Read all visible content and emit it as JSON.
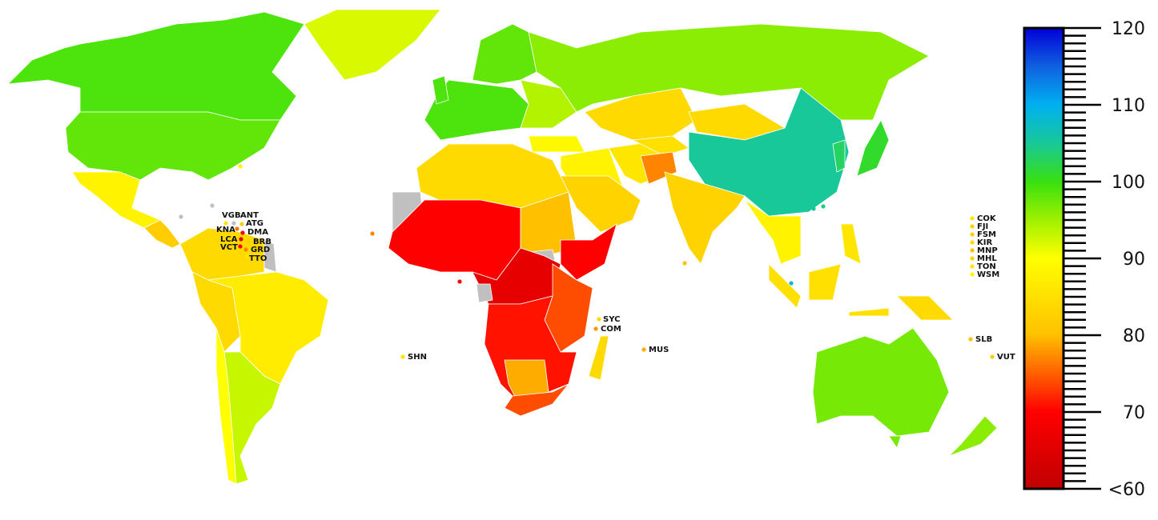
{
  "legend": {
    "min": 60,
    "max": 120,
    "tick_labels": [
      "120",
      "110",
      "100",
      "90",
      "80",
      "70",
      "<60"
    ],
    "tick_values": [
      120,
      110,
      100,
      90,
      80,
      70,
      60
    ],
    "colorscale": [
      [
        60,
        "#c00000"
      ],
      [
        70,
        "#ff0000"
      ],
      [
        75,
        "#ff6000"
      ],
      [
        78,
        "#ff9800"
      ],
      [
        80,
        "#ffc000"
      ],
      [
        85,
        "#ffe000"
      ],
      [
        90,
        "#ffff00"
      ],
      [
        95,
        "#a0f000"
      ],
      [
        100,
        "#38e010"
      ],
      [
        105,
        "#18c898"
      ],
      [
        110,
        "#00b0f0"
      ],
      [
        115,
        "#1060e0"
      ],
      [
        120,
        "#0000d8"
      ]
    ],
    "no_data_color": "#c0c0c0"
  },
  "regions": {
    "canada": 99,
    "usa": 98,
    "greenland": 92,
    "mexico": 88,
    "central_america": 82,
    "south_america_north": 84,
    "peru_bolivia": 84,
    "brazil": 87,
    "argentina": 93,
    "chile": 90,
    "french_guiana": null,
    "europe": 99,
    "uk": 99,
    "scandinavia": 98,
    "eastern_europe": 94,
    "russia": 96,
    "kazakhstan": 84,
    "turkey": 89,
    "middle_east": 88,
    "saudi_arabia": 83,
    "iran": 86,
    "central_asia": 85,
    "afghanistan": 77,
    "mongolia": 84,
    "china": 105,
    "korea": 103,
    "japan": 101,
    "india": 83,
    "southeast_asia": 88,
    "indonesia": 85,
    "philippines": 86,
    "papua_new_guinea": 84,
    "australia": 97,
    "tasmania": 97,
    "new_zealand": 96,
    "north_africa": 84,
    "western_sahara": null,
    "west_africa": 70,
    "sudan": 80,
    "south_sudan": null,
    "horn_of_africa": 70,
    "central_africa": 66,
    "gabon": null,
    "east_africa": 74,
    "southern_central_africa": 71,
    "namibia_botswana": 79,
    "south_africa": 74,
    "madagascar": 84
  },
  "small_states": [
    {
      "code": "VGB",
      "value": 86
    },
    {
      "code": "ANT",
      "value": null
    },
    {
      "code": "ATG",
      "value": 82
    },
    {
      "code": "KNA",
      "value": 76
    },
    {
      "code": "DMA",
      "value": 70
    },
    {
      "code": "LCA",
      "value": 66
    },
    {
      "code": "BRB",
      "value": 82
    },
    {
      "code": "VCT",
      "value": 70
    },
    {
      "code": "GRD",
      "value": 77
    },
    {
      "code": "TTO",
      "value": 86
    },
    {
      "code": "COK",
      "value": 86
    },
    {
      "code": "FJI",
      "value": 82
    },
    {
      "code": "FSM",
      "value": 82
    },
    {
      "code": "KIR",
      "value": 84
    },
    {
      "code": "MNP",
      "value": 80
    },
    {
      "code": "MHL",
      "value": 83
    },
    {
      "code": "TON",
      "value": 86
    },
    {
      "code": "WSM",
      "value": 88
    },
    {
      "code": "SYC",
      "value": 84
    },
    {
      "code": "COM",
      "value": 78
    },
    {
      "code": "MUS",
      "value": 79
    },
    {
      "code": "SHN",
      "value": 86
    },
    {
      "code": "SLB",
      "value": 80
    },
    {
      "code": "VUT",
      "value": 82
    }
  ]
}
